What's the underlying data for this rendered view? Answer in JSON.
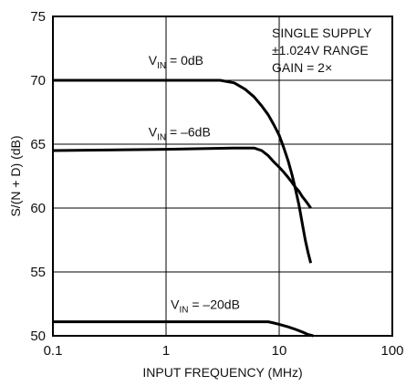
{
  "chart_data": {
    "type": "line",
    "xlabel": "INPUT FREQUENCY (MHz)",
    "ylabel": "S/(N + D) (dB)",
    "xscale": "log",
    "xlim": [
      0.1,
      100
    ],
    "ylim": [
      50,
      75
    ],
    "x_ticks": [
      "0.1",
      "1",
      "10",
      "100"
    ],
    "y_ticks": [
      "50",
      "55",
      "60",
      "65",
      "70",
      "75"
    ],
    "grid": true,
    "annotation": [
      "SINGLE SUPPLY",
      "±1.024V RANGE",
      "GAIN = 2×"
    ],
    "series": [
      {
        "label_main": "V",
        "label_sub": "IN",
        "label_rest": " = 0dB",
        "x": [
          0.1,
          1,
          3,
          4,
          5,
          6,
          7,
          8,
          9,
          10,
          11,
          12,
          13,
          14,
          15,
          16,
          17,
          18,
          19
        ],
        "y": [
          70,
          70,
          70,
          69.8,
          69.3,
          68.7,
          68.0,
          67.3,
          66.5,
          65.7,
          64.7,
          63.7,
          62.6,
          61.4,
          60.2,
          58.8,
          57.5,
          56.5,
          55.7
        ]
      },
      {
        "label_main": "V",
        "label_sub": "IN",
        "label_rest": " = –6dB",
        "x": [
          0.1,
          1,
          4,
          6,
          7,
          8,
          9,
          10,
          11,
          12,
          13,
          14,
          15,
          16,
          17,
          18,
          19
        ],
        "y": [
          64.5,
          64.6,
          64.7,
          64.7,
          64.5,
          64.1,
          63.6,
          63.2,
          62.8,
          62.4,
          62.0,
          61.6,
          61.3,
          60.9,
          60.6,
          60.3,
          60.0
        ]
      },
      {
        "label_main": "V",
        "label_sub": "IN",
        "label_rest": " = –20dB",
        "x": [
          0.1,
          1,
          5,
          7,
          8,
          9,
          10,
          12,
          14,
          16,
          18,
          20
        ],
        "y": [
          51.1,
          51.1,
          51.1,
          51.1,
          51.1,
          51.0,
          50.9,
          50.7,
          50.5,
          50.3,
          50.1,
          50.0
        ]
      }
    ]
  }
}
